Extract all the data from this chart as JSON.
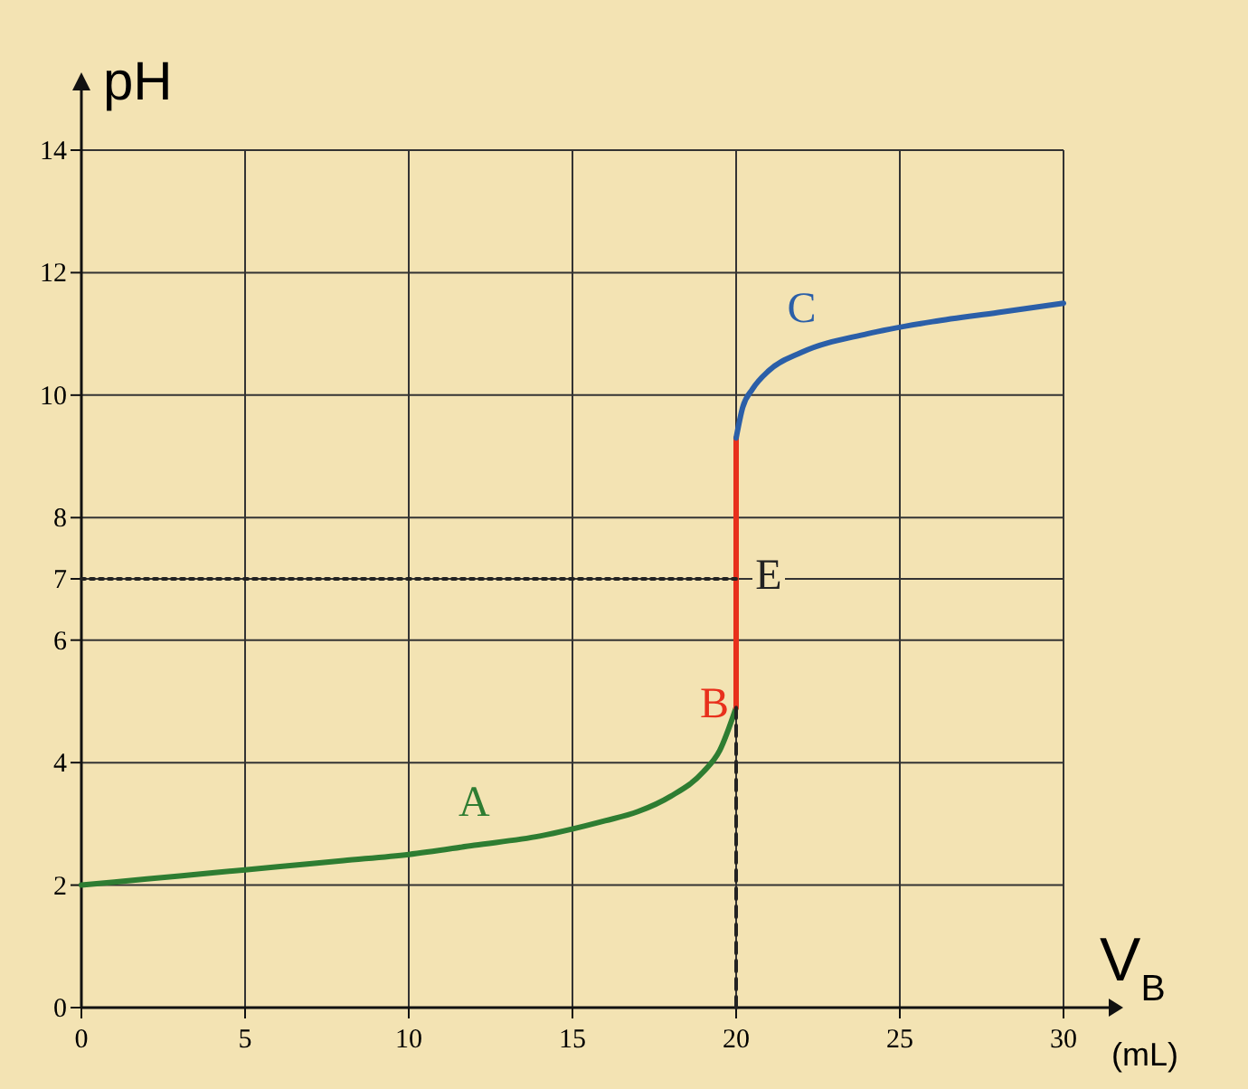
{
  "chart_data": {
    "type": "line",
    "xlabel": "V$_{B}$ (mL)",
    "ylabel": "pH",
    "xlim": [
      0,
      30
    ],
    "ylim": [
      0,
      14
    ],
    "xticks": [
      0,
      5,
      10,
      15,
      20,
      25,
      30
    ],
    "yticks": [
      0,
      2,
      4,
      6,
      7,
      8,
      10,
      12,
      14
    ],
    "grid": true,
    "marker": "none",
    "series": [
      {
        "color": "#2e7d32",
        "line_style": "solid",
        "x": [
          0,
          2,
          4,
          6,
          8,
          10,
          12,
          14,
          16,
          17,
          18,
          19,
          19.5,
          20
        ],
        "values": [
          2.0,
          2.1,
          2.2,
          2.3,
          2.4,
          2.5,
          2.65,
          2.8,
          3.05,
          3.2,
          3.45,
          3.85,
          4.2,
          4.9
        ]
      },
      {
        "color": "#e8301c",
        "line_style": "solid",
        "x": [
          20,
          20
        ],
        "values": [
          4.9,
          9.3
        ]
      },
      {
        "color": "#2b5fa8",
        "line_style": "solid",
        "x": [
          20,
          20.2,
          20.5,
          21,
          22,
          24,
          26,
          28,
          30
        ],
        "values": [
          9.3,
          9.8,
          10.1,
          10.4,
          10.7,
          11.0,
          11.2,
          11.35,
          11.5
        ]
      },
      {
        "color": "#222222",
        "line_style": "dotted",
        "x": [
          0,
          20
        ],
        "values": [
          7,
          7
        ]
      },
      {
        "color": "#222222",
        "line_style": "dashed",
        "x": [
          20,
          20
        ],
        "values": [
          0,
          4.9
        ]
      }
    ],
    "annotations": [
      "A",
      "B",
      "C",
      "E"
    ]
  }
}
